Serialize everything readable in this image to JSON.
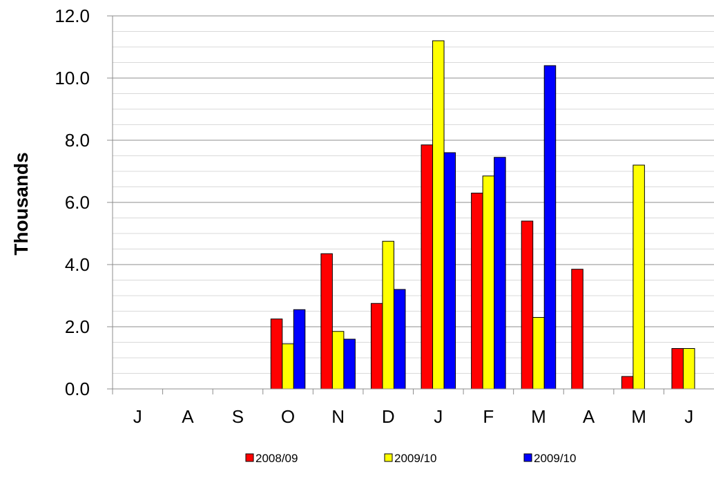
{
  "chart_data": {
    "type": "bar",
    "ylabel": "Thousands",
    "xlabel": "",
    "ylim": [
      0,
      12
    ],
    "yticks": [
      "0.0",
      "2.0",
      "4.0",
      "6.0",
      "8.0",
      "10.0",
      "12.0"
    ],
    "categories": [
      "J",
      "A",
      "S",
      "O",
      "N",
      "D",
      "J",
      "F",
      "M",
      "A",
      "M",
      "J"
    ],
    "grid": true,
    "legend_position": "bottom",
    "series": [
      {
        "name": "2008/09",
        "color": "#ff0000",
        "values": [
          0,
          0,
          0,
          2.25,
          4.35,
          2.75,
          7.85,
          6.3,
          5.4,
          3.85,
          0.4,
          1.3
        ]
      },
      {
        "name": "2009/10",
        "color": "#ffff00",
        "values": [
          0,
          0,
          0,
          1.45,
          1.85,
          4.75,
          11.2,
          6.85,
          2.3,
          0,
          7.2,
          1.3
        ]
      },
      {
        "name": "2009/10",
        "color": "#0000ff",
        "values": [
          0,
          0,
          0,
          2.55,
          1.6,
          3.2,
          7.6,
          7.45,
          10.4,
          0,
          0,
          0
        ]
      }
    ]
  }
}
